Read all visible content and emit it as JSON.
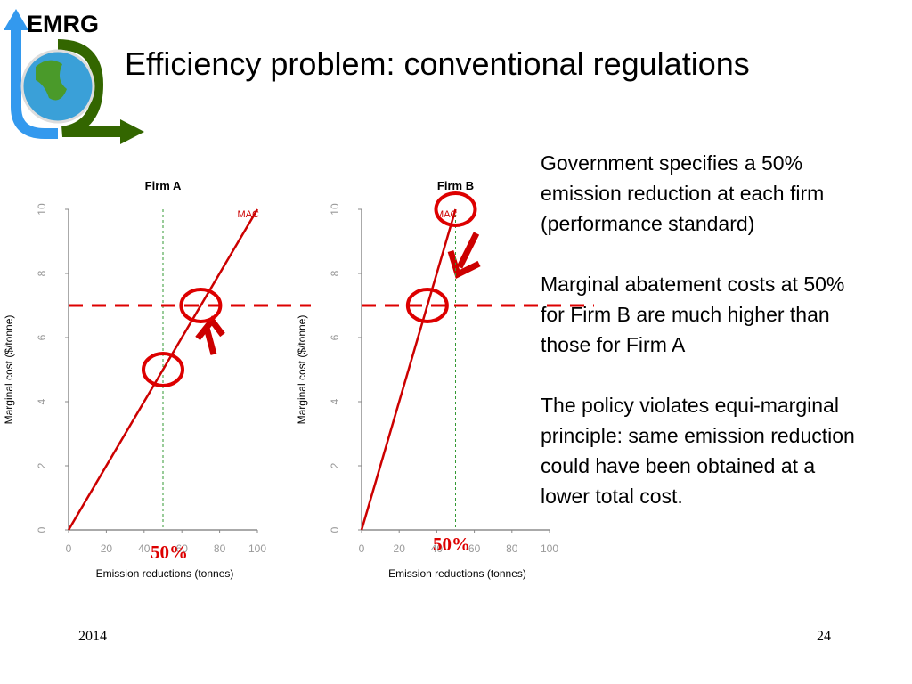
{
  "logo": "EMRG",
  "title": "Efficiency problem: conventional regulations",
  "chart_data": [
    {
      "type": "line",
      "title": "Firm A",
      "x": [
        0,
        100
      ],
      "series": [
        {
          "name": "MAC",
          "color": "#cc0000",
          "values": [
            0,
            10
          ]
        }
      ],
      "xlim": [
        0,
        100
      ],
      "ylim": [
        0,
        10
      ],
      "xticks": [
        0,
        20,
        40,
        60,
        80,
        100
      ],
      "yticks": [
        0,
        2,
        4,
        6,
        8,
        10
      ],
      "xlabel": "Emission reductions (tonnes)",
      "ylabel": "Marginal cost ($/tonne)",
      "vline": 50,
      "hline": 7,
      "annotation": "50%"
    },
    {
      "type": "line",
      "title": "Firm B",
      "x": [
        0,
        50
      ],
      "series": [
        {
          "name": "MAC",
          "color": "#cc0000",
          "values": [
            0,
            10
          ]
        }
      ],
      "xlim": [
        0,
        100
      ],
      "ylim": [
        0,
        10
      ],
      "xticks": [
        0,
        20,
        40,
        60,
        80,
        100
      ],
      "yticks": [
        0,
        2,
        4,
        6,
        8,
        10
      ],
      "xlabel": "Emission reductions (tonnes)",
      "ylabel": "Marginal cost ($/tonne)",
      "vline": 50,
      "hline": 7,
      "annotation": "50%"
    }
  ],
  "text": {
    "paragraphs": [
      "Government specifies a 50% emission reduction at each firm (performance standard)",
      "Marginal abatement costs at 50% for Firm B are much higher than those for Firm A",
      "The policy violates equi-marginal principle: same emission reduction could have been obtained at a lower total cost."
    ]
  },
  "footer": {
    "year": "2014",
    "page": "24"
  }
}
